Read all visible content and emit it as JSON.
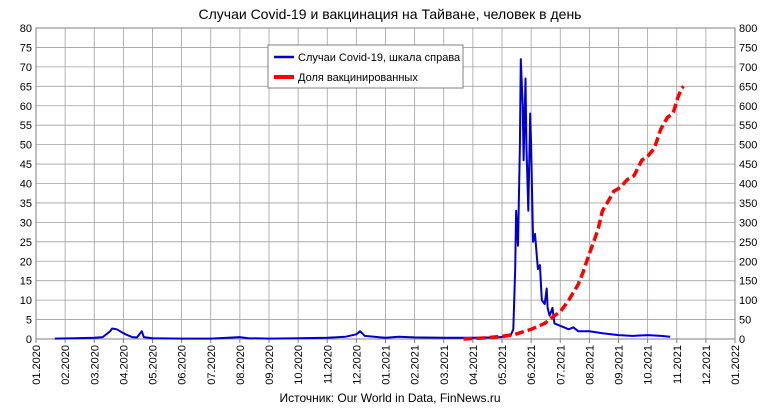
{
  "chart_data": {
    "type": "line",
    "title": "Случаи Covid-19 и вакцинация на Тайване, человек в день",
    "source": "Источник: Our World in Data, FinNews.ru",
    "grid": true,
    "legend_placement": "top-center",
    "x_ticks": [
      "01.2020",
      "02.2020",
      "03.2020",
      "04.2020",
      "05.2020",
      "06.2020",
      "07.2020",
      "08.2020",
      "09.2020",
      "10.2020",
      "11.2020",
      "12.2020",
      "01.2021",
      "02.2021",
      "03.2021",
      "04.2021",
      "05.2021",
      "06.2021",
      "07.2021",
      "08.2021",
      "09.2021",
      "10.2021",
      "11.2021",
      "12.2021",
      "01.2022"
    ],
    "y_left": {
      "ticks": [
        "0",
        "5",
        "10",
        "15",
        "20",
        "25",
        "30",
        "35",
        "40",
        "45",
        "50",
        "55",
        "60",
        "65",
        "70",
        "75",
        "80"
      ],
      "ylim": [
        0,
        80
      ]
    },
    "y_right": {
      "ticks": [
        "0",
        "50",
        "100",
        "150",
        "200",
        "250",
        "300",
        "350",
        "400",
        "450",
        "500",
        "550",
        "600",
        "650",
        "700",
        "750",
        "800"
      ],
      "ylim": [
        0,
        800
      ]
    },
    "series": [
      {
        "name": "Случаи Covid-19, шкала справа",
        "axis": "right",
        "color": "#0000cc",
        "style": "solid",
        "points": [
          [
            "2020-01-21",
            1
          ],
          [
            "2020-02-10",
            2
          ],
          [
            "2020-03-01",
            3
          ],
          [
            "2020-03-10",
            5
          ],
          [
            "2020-03-18",
            20
          ],
          [
            "2020-03-20",
            27
          ],
          [
            "2020-03-25",
            25
          ],
          [
            "2020-04-01",
            15
          ],
          [
            "2020-04-05",
            10
          ],
          [
            "2020-04-10",
            5
          ],
          [
            "2020-04-15",
            4
          ],
          [
            "2020-04-20",
            20
          ],
          [
            "2020-04-22",
            5
          ],
          [
            "2020-05-01",
            2
          ],
          [
            "2020-06-01",
            1
          ],
          [
            "2020-07-01",
            1
          ],
          [
            "2020-08-01",
            5
          ],
          [
            "2020-08-10",
            2
          ],
          [
            "2020-09-01",
            1
          ],
          [
            "2020-10-01",
            2
          ],
          [
            "2020-11-01",
            3
          ],
          [
            "2020-11-20",
            6
          ],
          [
            "2020-12-01",
            12
          ],
          [
            "2020-12-05",
            20
          ],
          [
            "2020-12-10",
            8
          ],
          [
            "2020-12-20",
            6
          ],
          [
            "2021-01-01",
            3
          ],
          [
            "2021-01-15",
            6
          ],
          [
            "2021-02-01",
            4
          ],
          [
            "2021-03-01",
            3
          ],
          [
            "2021-04-01",
            3
          ],
          [
            "2021-04-25",
            4
          ],
          [
            "2021-05-05",
            6
          ],
          [
            "2021-05-10",
            8
          ],
          [
            "2021-05-13",
            25
          ],
          [
            "2021-05-15",
            180
          ],
          [
            "2021-05-16",
            330
          ],
          [
            "2021-05-18",
            240
          ],
          [
            "2021-05-20",
            500
          ],
          [
            "2021-05-21",
            720
          ],
          [
            "2021-05-23",
            600
          ],
          [
            "2021-05-24",
            460
          ],
          [
            "2021-05-26",
            670
          ],
          [
            "2021-05-27",
            500
          ],
          [
            "2021-05-29",
            330
          ],
          [
            "2021-05-31",
            580
          ],
          [
            "2021-06-01",
            500
          ],
          [
            "2021-06-02",
            370
          ],
          [
            "2021-06-03",
            250
          ],
          [
            "2021-06-05",
            270
          ],
          [
            "2021-06-08",
            180
          ],
          [
            "2021-06-10",
            190
          ],
          [
            "2021-06-12",
            100
          ],
          [
            "2021-06-15",
            90
          ],
          [
            "2021-06-17",
            130
          ],
          [
            "2021-06-18",
            80
          ],
          [
            "2021-06-20",
            60
          ],
          [
            "2021-06-23",
            80
          ],
          [
            "2021-06-25",
            40
          ],
          [
            "2021-06-30",
            35
          ],
          [
            "2021-07-05",
            30
          ],
          [
            "2021-07-10",
            25
          ],
          [
            "2021-07-15",
            30
          ],
          [
            "2021-07-20",
            20
          ],
          [
            "2021-08-01",
            20
          ],
          [
            "2021-08-15",
            15
          ],
          [
            "2021-09-01",
            10
          ],
          [
            "2021-09-15",
            8
          ],
          [
            "2021-10-01",
            10
          ],
          [
            "2021-10-15",
            8
          ],
          [
            "2021-10-25",
            6
          ]
        ]
      },
      {
        "name": "Доля вакцинированных",
        "axis": "left",
        "color": "#ff0000",
        "style": "dashed",
        "points": [
          [
            "2021-03-22",
            0
          ],
          [
            "2021-04-15",
            0.3
          ],
          [
            "2021-05-01",
            0.7
          ],
          [
            "2021-05-15",
            1.2
          ],
          [
            "2021-06-01",
            2.5
          ],
          [
            "2021-06-15",
            4
          ],
          [
            "2021-06-25",
            6
          ],
          [
            "2021-07-01",
            7
          ],
          [
            "2021-07-10",
            10
          ],
          [
            "2021-07-20",
            14
          ],
          [
            "2021-07-25",
            17
          ],
          [
            "2021-08-01",
            22
          ],
          [
            "2021-08-10",
            28
          ],
          [
            "2021-08-15",
            33
          ],
          [
            "2021-08-20",
            35
          ],
          [
            "2021-08-27",
            38
          ],
          [
            "2021-09-03",
            39
          ],
          [
            "2021-09-10",
            41
          ],
          [
            "2021-09-17",
            42
          ],
          [
            "2021-09-25",
            46
          ],
          [
            "2021-10-01",
            47
          ],
          [
            "2021-10-08",
            49
          ],
          [
            "2021-10-15",
            54
          ],
          [
            "2021-10-22",
            57
          ],
          [
            "2021-10-28",
            58
          ],
          [
            "2021-11-02",
            62
          ],
          [
            "2021-11-06",
            64.5
          ],
          [
            "2021-11-08",
            65
          ]
        ]
      }
    ]
  }
}
